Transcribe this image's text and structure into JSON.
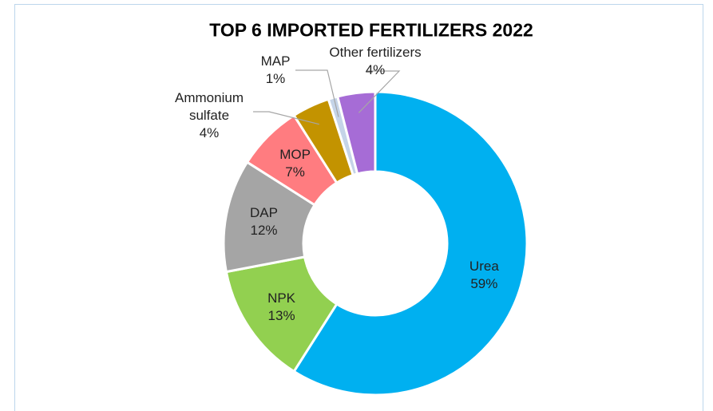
{
  "chart_data": {
    "type": "donut",
    "title": "TOP 6 IMPORTED FERTILIZERS 2022",
    "categories": [
      "Urea",
      "NPK",
      "DAP",
      "MOP",
      "Ammonium sulfate",
      "MAP",
      "Other fertilizers"
    ],
    "values": [
      59,
      13,
      12,
      7,
      4,
      1,
      4
    ],
    "value_labels": [
      "59%",
      "13%",
      "12%",
      "7%",
      "4%",
      "1%",
      "4%"
    ],
    "colors": [
      "#00b0f0",
      "#92d050",
      "#a5a5a5",
      "#ff7c80",
      "#c39300",
      "#c5d4e8",
      "#a66cd6"
    ]
  }
}
